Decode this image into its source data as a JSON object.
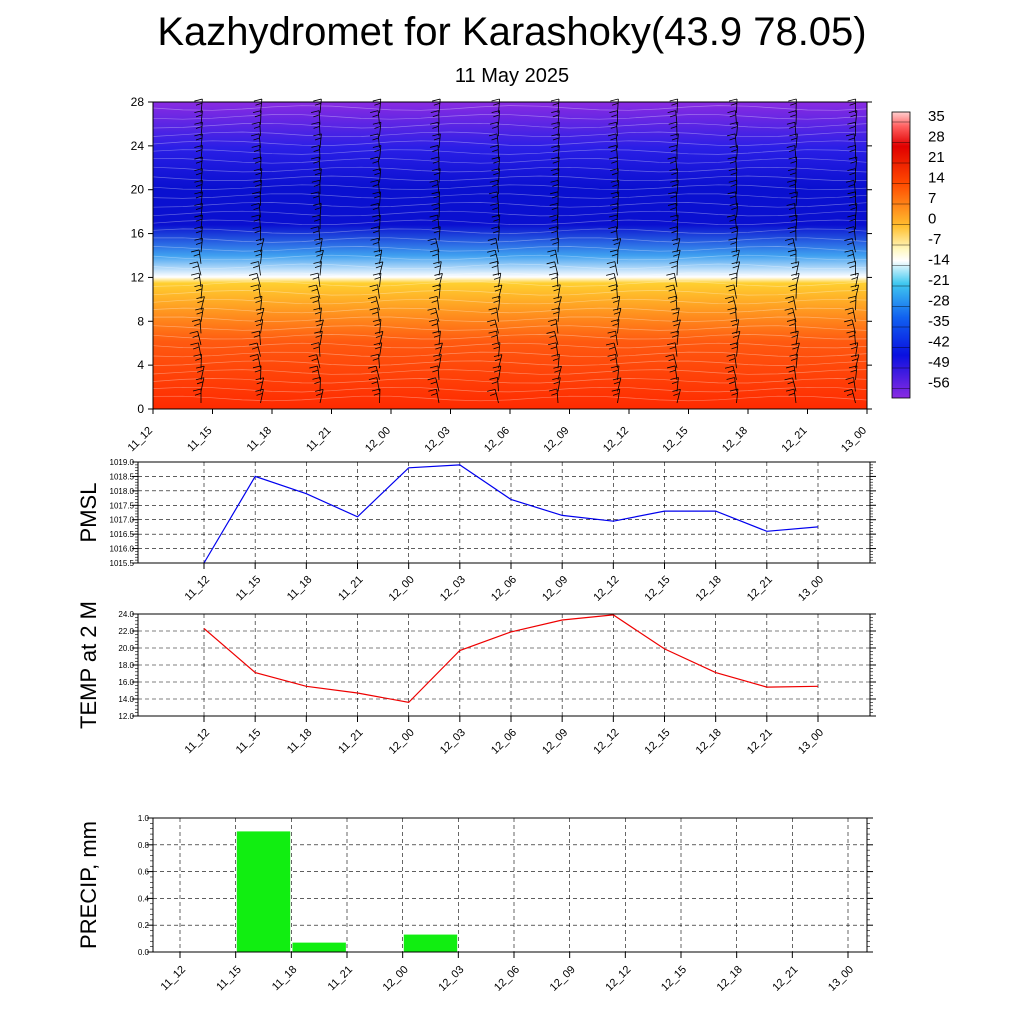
{
  "title": "Kazhydromet for Karashoky(43.9 78.05)",
  "subtitle": "11 May 2025",
  "chart_data": [
    {
      "id": "cross-section",
      "type": "heatmap",
      "y_ticks": [
        "0",
        "4",
        "8",
        "12",
        "16",
        "20",
        "24",
        "28"
      ],
      "ylim": [
        0,
        28
      ],
      "x_ticks": [
        "11_12",
        "11_15",
        "11_18",
        "11_21",
        "12_00",
        "12_03",
        "12_06",
        "12_09",
        "12_12",
        "12_15",
        "12_18",
        "12_21",
        "13_00"
      ],
      "colorbar": {
        "labels": [
          "35",
          "28",
          "21",
          "14",
          "7",
          "0",
          "-7",
          "-14",
          "-21",
          "-28",
          "-35",
          "-42",
          "-49",
          "-56"
        ],
        "range": [
          -63,
          42
        ]
      },
      "colors": {
        "top": "#8a2be2",
        "upper": "#2a1fe6",
        "cold": "#0a10d0",
        "mid": "#3fa0f0",
        "freeze": "#ffffff",
        "warm": "#ffd030",
        "hot": "#ff5a10",
        "bottom": "#ff2a00"
      }
    },
    {
      "id": "pmsl",
      "type": "line",
      "ylabel": "PMSL",
      "ylim": [
        1015.5,
        1019.0
      ],
      "y_ticks": [
        "1015.5",
        "1016.0",
        "1016.5",
        "1017.0",
        "1017.5",
        "1018.0",
        "1018.5",
        "1019.0"
      ],
      "x": [
        "11_12",
        "11_15",
        "11_18",
        "11_21",
        "12_00",
        "12_03",
        "12_06",
        "12_09",
        "12_12",
        "12_15",
        "12_18",
        "12_21",
        "13_00"
      ],
      "values": [
        1015.5,
        1018.5,
        1017.9,
        1017.1,
        1018.8,
        1018.9,
        1017.7,
        1017.15,
        1016.95,
        1017.3,
        1017.3,
        1016.6,
        1016.75
      ],
      "line_color": "#0000ee"
    },
    {
      "id": "temp",
      "type": "line",
      "ylabel": "TEMP at 2 M",
      "ylim": [
        12.0,
        24.0
      ],
      "y_ticks": [
        "12.0",
        "14.0",
        "16.0",
        "18.0",
        "20.0",
        "22.0",
        "24.0"
      ],
      "x": [
        "11_12",
        "11_15",
        "11_18",
        "11_21",
        "12_00",
        "12_03",
        "12_06",
        "12_09",
        "12_12",
        "12_15",
        "12_18",
        "12_21",
        "13_00"
      ],
      "values": [
        22.3,
        17.1,
        15.5,
        14.7,
        13.6,
        19.7,
        21.9,
        23.3,
        23.9,
        19.9,
        17.1,
        15.4,
        15.5
      ],
      "line_color": "#ee0000"
    },
    {
      "id": "precip",
      "type": "bar",
      "ylabel": "PRECIP, mm",
      "ylim": [
        0,
        1.0
      ],
      "y_ticks": [
        "0.0",
        "0.2",
        "0.4",
        "0.6",
        "0.8",
        "1.0"
      ],
      "categories": [
        "11_12",
        "11_15",
        "11_18",
        "11_21",
        "12_00",
        "12_03",
        "12_06",
        "12_09",
        "12_12",
        "12_15",
        "12_18",
        "12_21",
        "13_00"
      ],
      "values": [
        0,
        0.9,
        0.07,
        0,
        0.13,
        0,
        0,
        0,
        0,
        0,
        0,
        0,
        0
      ],
      "bar_color": "#11ee11"
    }
  ]
}
